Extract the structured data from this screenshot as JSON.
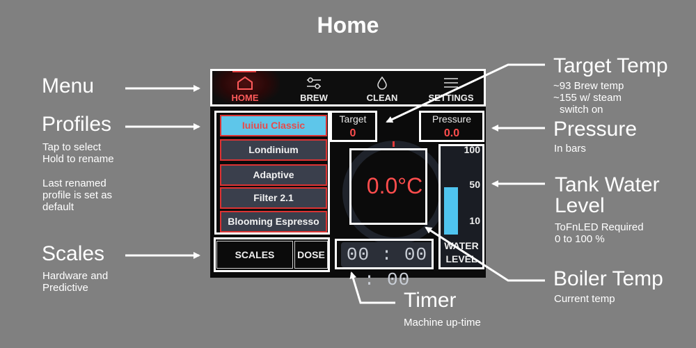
{
  "page_title": "Home",
  "annotations": {
    "menu": {
      "title": "Menu"
    },
    "profiles": {
      "title": "Profiles",
      "line1": "Tap to select",
      "line2": "Hold to rename",
      "line3": "Last renamed",
      "line4": "profile is set as",
      "line5": "default"
    },
    "scales": {
      "title": "Scales",
      "line1": "Hardware and",
      "line2": "Predictive"
    },
    "target_temp": {
      "title": "Target Temp",
      "line1": "~93 Brew temp",
      "line2": "~155 w/ steam",
      "line3": "switch on"
    },
    "pressure": {
      "title": "Pressure",
      "line1": "In bars"
    },
    "tank": {
      "title_line1": "Tank Water",
      "title_line2": "Level",
      "line1": "ToFnLED Required",
      "line2": "0 to 100 %"
    },
    "boiler": {
      "title": "Boiler Temp",
      "line1": "Current temp"
    },
    "timer": {
      "title": "Timer",
      "line1": "Machine up-time"
    }
  },
  "nav": [
    {
      "label": "HOME",
      "icon": "home-icon",
      "active": true
    },
    {
      "label": "BREW",
      "icon": "sliders-icon"
    },
    {
      "label": "CLEAN",
      "icon": "drop-icon"
    },
    {
      "label": "SETTINGS",
      "icon": "menu-icon"
    }
  ],
  "profiles": [
    "Iuiuiu Classic",
    "Londinium",
    "Adaptive",
    "Filter 2.1",
    "Blooming Espresso"
  ],
  "scales": {
    "scales_label": "SCALES",
    "dose_label": "DOSE"
  },
  "target": {
    "label": "Target",
    "value": "0"
  },
  "pressure": {
    "label": "Pressure",
    "value": "0.0"
  },
  "boiler_temp": "0.0°C",
  "tank": {
    "ticks": [
      "100",
      "50",
      "10"
    ],
    "label_line1": "WATER",
    "label_line2": "LEVEL",
    "level_fraction": 0.35
  },
  "timer": "00 : 00 : 00",
  "colors": {
    "background": "#808080",
    "screen": "#0b0b0b",
    "accent_red": "#ff4d4d",
    "profile_selected": "#5ec6ea",
    "tank_fill": "#4fc4ef"
  }
}
